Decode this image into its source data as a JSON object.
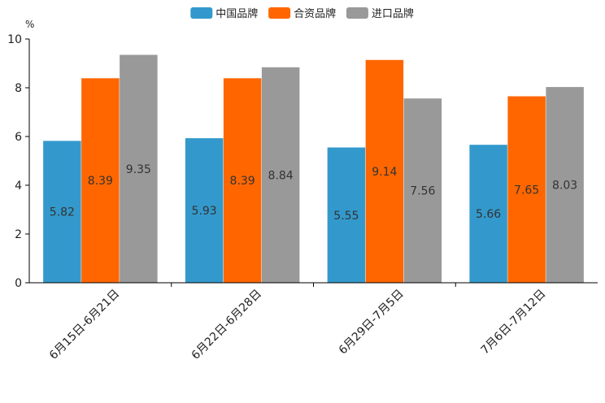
{
  "chart_data": {
    "type": "bar",
    "title": "",
    "xlabel": "",
    "ylabel": "%",
    "ylim": [
      0,
      10
    ],
    "yticks": [
      0,
      2,
      4,
      6,
      8,
      10
    ],
    "grid": false,
    "legend_position": "top-center",
    "categories": [
      "6月15日-6月21日",
      "6月22日-6月28日",
      "6月29日-7月5日",
      "7月6日-7月12日"
    ],
    "series": [
      {
        "name": "中国品牌",
        "color": "#3399cc",
        "values": [
          5.82,
          5.93,
          5.55,
          5.66
        ]
      },
      {
        "name": "合资品牌",
        "color": "#ff6600",
        "values": [
          8.39,
          8.39,
          9.14,
          7.65
        ]
      },
      {
        "name": "进口品牌",
        "color": "#999999",
        "values": [
          9.35,
          8.84,
          7.56,
          8.03
        ]
      }
    ]
  }
}
